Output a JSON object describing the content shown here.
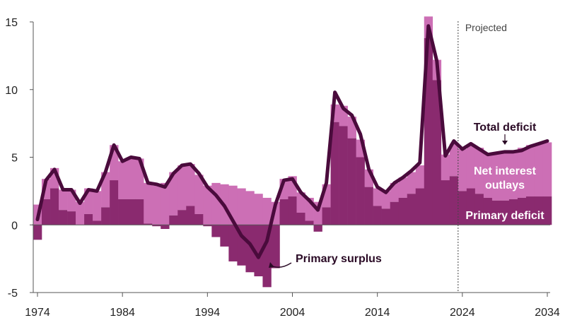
{
  "colors": {
    "net_interest": "#cc6fb5",
    "primary_deficit": "#8a2a6f",
    "total_deficit_line": "#4a0b3c",
    "annotation_light": "#ffffff",
    "annotation_dark": "#2a0a25",
    "axis": "#555555",
    "projection_line": "#444444"
  },
  "chart_data": {
    "type": "bar",
    "title": "",
    "xlabel": "",
    "ylabel": "",
    "ylim": [
      -5,
      15
    ],
    "xlim": [
      1974,
      2034
    ],
    "y_ticks": [
      "15",
      "10",
      "5",
      "0",
      "-5"
    ],
    "x_ticks": [
      "1974",
      "1984",
      "1994",
      "2004",
      "2014",
      "2024",
      "2034"
    ],
    "grid": false,
    "projection_start_label": "Projected",
    "projection_year": 2023.5,
    "years": [
      1974,
      1975,
      1976,
      1977,
      1978,
      1979,
      1980,
      1981,
      1982,
      1983,
      1984,
      1985,
      1986,
      1987,
      1988,
      1989,
      1990,
      1991,
      1992,
      1993,
      1994,
      1995,
      1996,
      1997,
      1998,
      1999,
      2000,
      2001,
      2002,
      2003,
      2004,
      2005,
      2006,
      2007,
      2008,
      2009,
      2010,
      2011,
      2012,
      2013,
      2014,
      2015,
      2016,
      2017,
      2018,
      2019,
      2020,
      2021,
      2022,
      2023,
      2024,
      2025,
      2026,
      2027,
      2028,
      2029,
      2030,
      2031,
      2032,
      2033,
      2034
    ],
    "series": [
      {
        "name": "Primary deficit",
        "values": [
          -1.1,
          1.9,
          2.7,
          1.1,
          1.0,
          0.0,
          0.8,
          0.3,
          1.3,
          3.3,
          1.9,
          1.9,
          1.9,
          0.1,
          -0.1,
          -0.3,
          0.7,
          1.1,
          1.4,
          0.8,
          -0.1,
          -0.9,
          -1.6,
          -2.7,
          -3.0,
          -3.5,
          -3.8,
          -4.6,
          -3.2,
          1.9,
          2.1,
          0.9,
          0.3,
          -0.5,
          1.3,
          7.6,
          7.3,
          6.4,
          5.0,
          2.8,
          1.4,
          1.2,
          1.7,
          2.0,
          2.3,
          2.7,
          13.8,
          10.7,
          3.3,
          3.6,
          2.5,
          2.7,
          2.3,
          2.0,
          1.8,
          1.8,
          1.9,
          2.0,
          2.1,
          2.1,
          2.1
        ]
      },
      {
        "name": "Net interest outlays",
        "values": [
          1.5,
          1.5,
          1.5,
          1.5,
          1.6,
          1.7,
          1.9,
          2.2,
          2.6,
          2.6,
          2.8,
          3.1,
          3.0,
          3.0,
          2.9,
          3.1,
          3.2,
          3.3,
          3.1,
          2.9,
          2.9,
          3.1,
          3.0,
          2.9,
          2.7,
          2.5,
          2.3,
          2.0,
          1.7,
          1.5,
          1.5,
          1.5,
          1.7,
          1.7,
          1.7,
          1.3,
          1.5,
          1.6,
          1.3,
          1.3,
          1.3,
          1.3,
          1.4,
          1.5,
          1.6,
          1.7,
          1.6,
          1.5,
          1.9,
          2.4,
          3.1,
          3.2,
          3.4,
          3.3,
          3.5,
          3.6,
          3.6,
          3.7,
          3.8,
          3.9,
          4.0
        ]
      },
      {
        "name": "Total deficit",
        "values": [
          0.4,
          3.3,
          4.1,
          2.6,
          2.6,
          1.6,
          2.6,
          2.5,
          3.9,
          5.9,
          4.7,
          5.0,
          4.9,
          3.1,
          3.0,
          2.8,
          3.8,
          4.4,
          4.5,
          3.8,
          2.8,
          2.2,
          1.4,
          0.3,
          -0.8,
          -1.4,
          -2.4,
          -1.2,
          1.5,
          3.3,
          3.4,
          2.4,
          1.8,
          1.1,
          3.1,
          9.8,
          8.6,
          8.1,
          6.7,
          4.1,
          2.8,
          2.4,
          3.1,
          3.5,
          4.0,
          4.6,
          14.7,
          12.1,
          5.1,
          6.2,
          5.6,
          6.0,
          5.6,
          5.2,
          5.3,
          5.4,
          5.4,
          5.5,
          5.8,
          6.0,
          6.2
        ]
      }
    ],
    "annotations": [
      {
        "id": "total",
        "text": "Total deficit"
      },
      {
        "id": "net1",
        "text": "Net interest"
      },
      {
        "id": "net2",
        "text": "outlays"
      },
      {
        "id": "primary",
        "text": "Primary deficit"
      },
      {
        "id": "surplus",
        "text": "Primary surplus"
      }
    ]
  }
}
